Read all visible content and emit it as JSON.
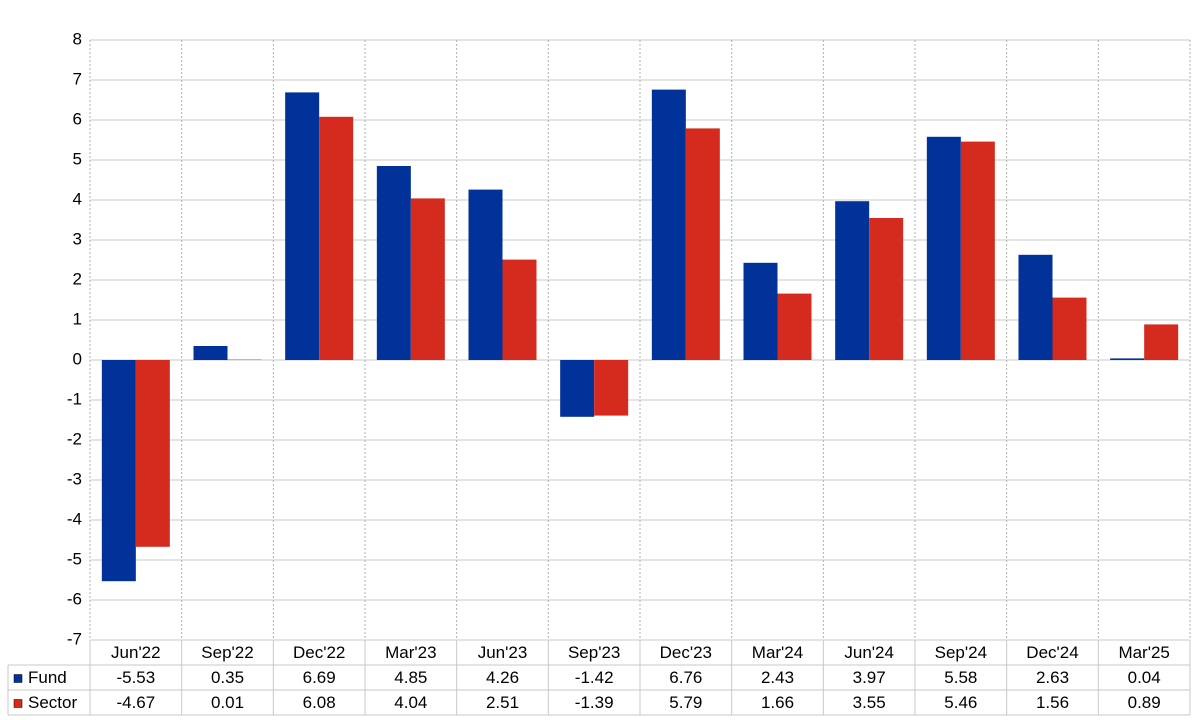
{
  "chart_data": {
    "type": "bar",
    "categories": [
      "Jun'22",
      "Sep'22",
      "Dec'22",
      "Mar'23",
      "Jun'23",
      "Sep'23",
      "Dec'23",
      "Mar'24",
      "Jun'24",
      "Sep'24",
      "Dec'24",
      "Mar'25"
    ],
    "series": [
      {
        "name": "Fund",
        "color": "#003299",
        "values": [
          -5.53,
          0.35,
          6.69,
          4.85,
          4.26,
          -1.42,
          6.76,
          2.43,
          3.97,
          5.58,
          2.63,
          0.04
        ]
      },
      {
        "name": "Sector",
        "color": "#d52b1e",
        "values": [
          -4.67,
          0.01,
          6.08,
          4.04,
          2.51,
          -1.39,
          5.79,
          1.66,
          3.55,
          5.46,
          1.56,
          0.89
        ]
      }
    ],
    "ylim": [
      -7,
      8
    ],
    "yticks": [
      -7,
      -6,
      -5,
      -4,
      -3,
      -2,
      -1,
      0,
      1,
      2,
      3,
      4,
      5,
      6,
      7,
      8
    ],
    "grid": true,
    "negative_color": "#ff0000"
  }
}
